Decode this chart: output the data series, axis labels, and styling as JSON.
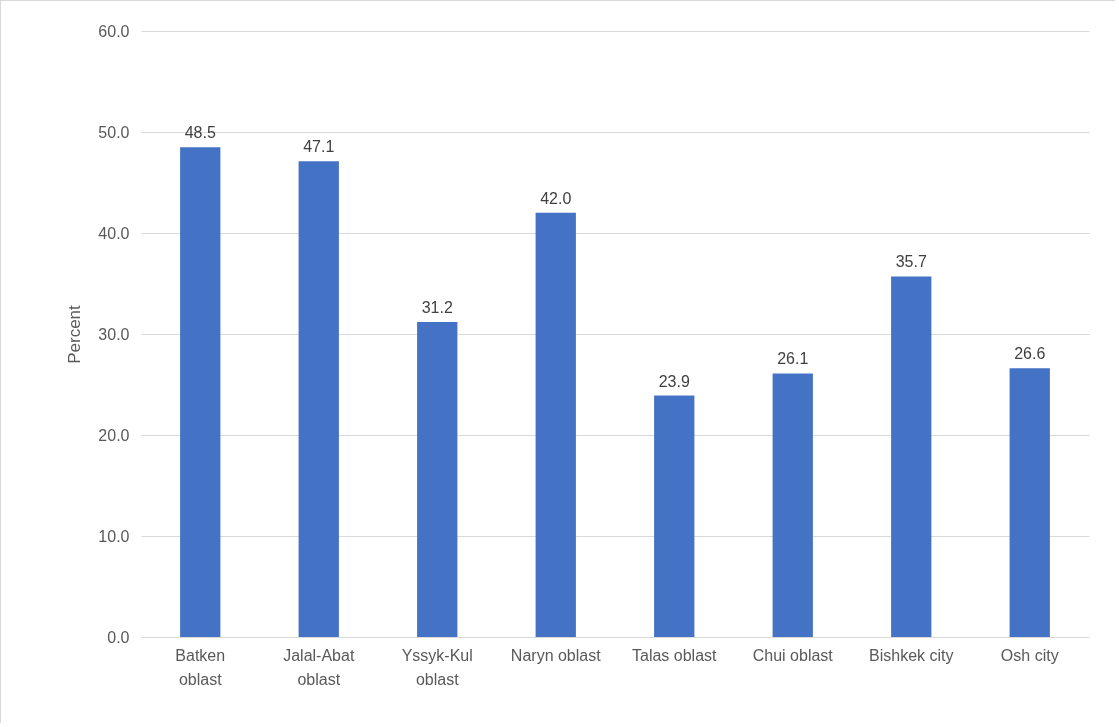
{
  "chart_data": {
    "type": "bar",
    "ylabel": "Percent",
    "categories": [
      "Batken oblast",
      "Jalal-Abat oblast",
      "Yssyk-Kul oblast",
      "Naryn oblast",
      "Talas oblast",
      "Chui oblast",
      "Bishkek city",
      "Osh city"
    ],
    "values": [
      48.5,
      47.1,
      31.2,
      42.0,
      23.9,
      26.1,
      35.7,
      26.6
    ],
    "value_labels": [
      "48.5",
      "47.1",
      "31.2",
      "42.0",
      "23.9",
      "26.1",
      "35.7",
      "26.6"
    ],
    "color": "#4472c4",
    "ylim": [
      0,
      60
    ],
    "yticks": [
      {
        "value": 0,
        "label": "0.0"
      },
      {
        "value": 10,
        "label": "10.0"
      },
      {
        "value": 20,
        "label": "20.0"
      },
      {
        "value": 30,
        "label": "30.0"
      },
      {
        "value": 40,
        "label": "40.0"
      },
      {
        "value": 50,
        "label": "50.0"
      },
      {
        "value": 60,
        "label": "60.0"
      }
    ],
    "grid": "y"
  }
}
